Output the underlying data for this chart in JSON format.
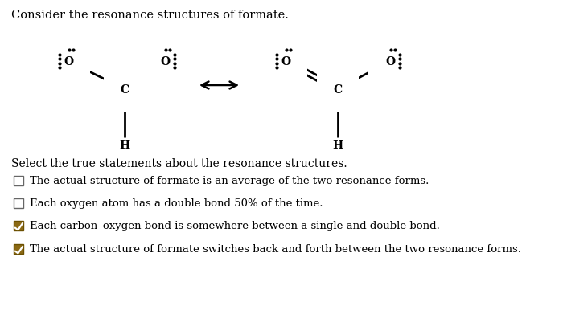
{
  "title": "Consider the resonance structures of formate.",
  "background_color": "#ffffff",
  "select_text": "Select the true statements about the resonance structures.",
  "options": [
    {
      "text": "The actual structure of formate is an average of the two resonance forms.",
      "checked": false
    },
    {
      "text": "Each oxygen atom has a double bond 50% of the time.",
      "checked": false
    },
    {
      "text": "Each carbon–oxygen bond is somewhere between a single and double bond.",
      "checked": true
    },
    {
      "text": "The actual structure of formate switches back and forth between the two resonance forms.",
      "checked": true
    }
  ],
  "checkbox_color": "#8B6914",
  "check_color": "#ffffff",
  "text_color": "#000000",
  "font_size": 9.5,
  "title_font_size": 10.5,
  "select_font_size": 10.0
}
